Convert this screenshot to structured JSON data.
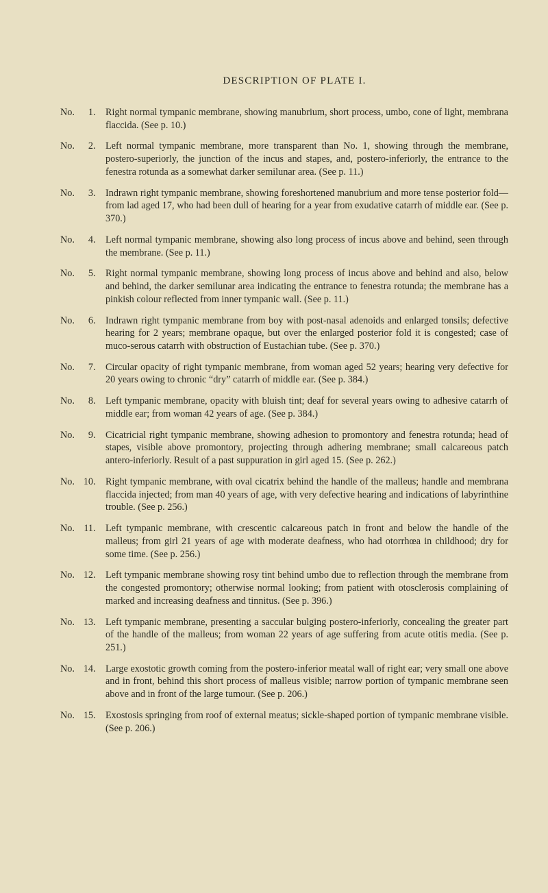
{
  "title": "DESCRIPTION OF PLATE I.",
  "entries": [
    {
      "no": "No.",
      "num": "1.",
      "text": "Right normal tympanic membrane, showing manubrium, short process, umbo, cone of light, membrana flaccida. (See p. 10.)"
    },
    {
      "no": "No.",
      "num": "2.",
      "text": "Left normal tympanic membrane, more transparent than No. 1, showing through the membrane, postero-superiorly, the junction of the incus and stapes, and, postero-inferiorly, the entrance to the fenestra rotunda as a somewhat darker semilunar area. (See p. 11.)"
    },
    {
      "no": "No.",
      "num": "3.",
      "text": "Indrawn right tympanic membrane, showing foreshortened manubrium and more tense posterior fold—from lad aged 17, who had been dull of hearing for a year from exudative catarrh of middle ear. (See p. 370.)"
    },
    {
      "no": "No.",
      "num": "4.",
      "text": "Left normal tympanic membrane, showing also long process of incus above and behind, seen through the membrane. (See p. 11.)"
    },
    {
      "no": "No.",
      "num": "5.",
      "text": "Right normal tympanic membrane, showing long process of incus above and behind and also, below and behind, the darker semilunar area indicating the entrance to fenestra rotunda; the membrane has a pinkish colour reflected from inner tympanic wall. (See p. 11.)"
    },
    {
      "no": "No.",
      "num": "6.",
      "text": "Indrawn right tympanic membrane from boy with post-nasal adenoids and enlarged tonsils; defective hearing for 2 years; membrane opaque, but over the enlarged posterior fold it is congested; case of muco-serous catarrh with obstruction of Eustachian tube. (See p. 370.)"
    },
    {
      "no": "No.",
      "num": "7.",
      "text": "Circular opacity of right tympanic membrane, from woman aged 52 years; hearing very defective for 20 years owing to chronic “dry” catarrh of middle ear. (See p. 384.)"
    },
    {
      "no": "No.",
      "num": "8.",
      "text": "Left tympanic membrane, opacity with bluish tint; deaf for several years owing to adhesive catarrh of middle ear; from woman 42 years of age. (See p. 384.)"
    },
    {
      "no": "No.",
      "num": "9.",
      "text": "Cicatricial right tympanic membrane, showing adhesion to promontory and fenestra rotunda; head of stapes, visible above promontory, projecting through adhering membrane; small calcareous patch antero-inferiorly. Result of a past suppuration in girl aged 15. (See p. 262.)"
    },
    {
      "no": "No.",
      "num": "10.",
      "text": "Right tympanic membrane, with oval cicatrix behind the handle of the malleus; handle and membrana flaccida injected; from man 40 years of age, with very defective hearing and indications of labyrinthine trouble. (See p. 256.)"
    },
    {
      "no": "No.",
      "num": "11.",
      "text": "Left tympanic membrane, with crescentic calcareous patch in front and below the handle of the malleus; from girl 21 years of age with moderate deafness, who had otorrhœa in childhood; dry for some time. (See p. 256.)"
    },
    {
      "no": "No.",
      "num": "12.",
      "text": "Left tympanic membrane showing rosy tint behind umbo due to reflection through the membrane from the congested promontory; otherwise normal looking; from patient with otosclerosis complaining of marked and increasing deafness and tinnitus. (See p. 396.)"
    },
    {
      "no": "No.",
      "num": "13.",
      "text": "Left tympanic membrane, presenting a saccular bulging postero-inferiorly, concealing the greater part of the handle of the malleus; from woman 22 years of age suffering from acute otitis media. (See p. 251.)"
    },
    {
      "no": "No.",
      "num": "14.",
      "text": "Large exostotic growth coming from the postero-inferior meatal wall of right ear; very small one above and in front, behind this short process of malleus visible; narrow portion of tympanic membrane seen above and in front of the large tumour. (See p. 206.)"
    },
    {
      "no": "No.",
      "num": "15.",
      "text": "Exostosis springing from roof of external meatus; sickle-shaped portion of tympanic membrane visible. (See p. 206.)"
    }
  ]
}
